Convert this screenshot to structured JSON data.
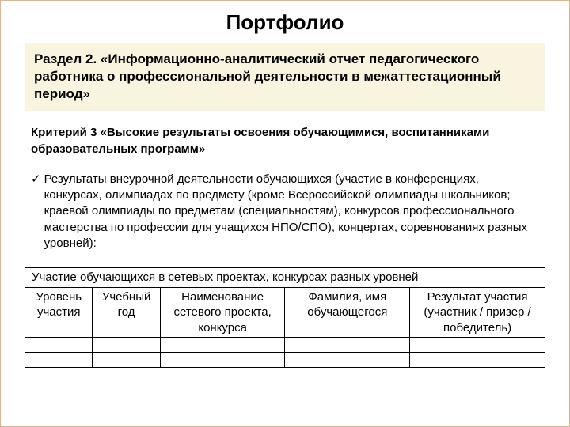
{
  "title": "Портфолио",
  "section": "Раздел 2. «Информационно-аналитический отчет педагогического работника о профессиональной деятельности в межаттестационный период»",
  "criterion": "Критерий 3 «Высокие результаты освоения обучающимися, воспитанниками образовательных программ»",
  "bullet": "Результаты внеурочной деятельности обучающихся (участие в конференциях, конкурсах, олимпиадах по предмету (кроме Всероссийской олимпиады школьников; краевой олимпиады по предметам (специальностям), конкурсов профессионального мастерства по профессии для учащихся НПО/СПО), концертах, соревнованиях разных уровней):",
  "table": {
    "caption": "Участие обучающихся в сетевых проектах, конкурсах разных уровней",
    "headers": {
      "c1": "Уровень участия",
      "c2": "Учебный год",
      "c3": "Наименование сетевого проекта, конкурса",
      "c4": "Фамилия, имя обучающегося",
      "c5": "Результат участия (участник / призер / победитель)"
    }
  },
  "colors": {
    "section_bg": "#f8f4e0",
    "page_border": "#d4b896",
    "text": "#000000"
  }
}
